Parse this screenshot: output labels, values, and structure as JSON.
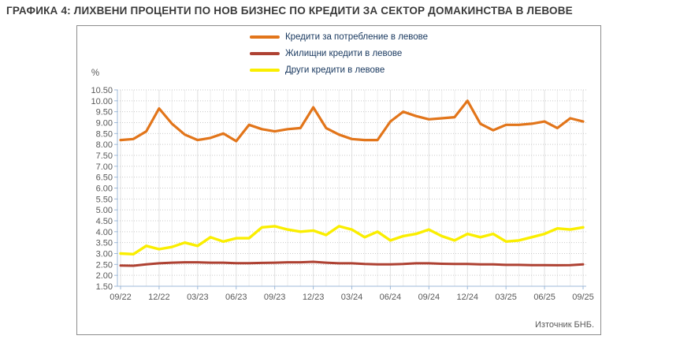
{
  "page_title": "ГРАФИКА 4: ЛИХВЕНИ ПРОЦЕНТИ ПО НОВ БИЗНЕС ПО КРЕДИТИ ЗА СЕКТОР ДОМАКИНСТВА В ЛЕВОВЕ",
  "source_note": "Източник БНБ.",
  "colors": {
    "consumer_line": "#e2751a",
    "housing_line": "#ae4132",
    "other_line": "#faee00",
    "axis": "#9db9d9",
    "grid_h": "#c9c9c9",
    "grid_v_month": "#ededed",
    "grid_v_quarter": "#e0e0e0",
    "tick_text": "#595959"
  },
  "chart_data": {
    "type": "line",
    "title": "ГРАФИКА 4: ЛИХВЕНИ ПРОЦЕНТИ ПО НОВ БИЗНЕС ПО КРЕДИТИ ЗА СЕКТОР ДОМАКИНСТВА В ЛЕВОВЕ",
    "unit_label": "%",
    "xlabel": "",
    "ylabel": "%",
    "ylim": [
      1.5,
      10.5
    ],
    "ytick_step": 0.5,
    "grid": true,
    "legend_position": "top-center",
    "x": [
      "09/22",
      "10/22",
      "11/22",
      "12/22",
      "01/23",
      "02/23",
      "03/23",
      "04/23",
      "05/23",
      "06/23",
      "07/23",
      "08/23",
      "09/23",
      "10/23",
      "11/23",
      "12/23",
      "01/24",
      "02/24",
      "03/24",
      "04/24",
      "05/24",
      "06/24",
      "07/24",
      "08/24",
      "09/24",
      "10/24",
      "11/24",
      "12/24",
      "01/25",
      "02/25",
      "03/25",
      "04/25",
      "05/25",
      "06/25",
      "07/25",
      "08/25",
      "09/25"
    ],
    "x_tick_labels": [
      "09/22",
      "12/22",
      "03/23",
      "06/23",
      "09/23",
      "12/23",
      "03/24",
      "06/24",
      "09/24",
      "12/24",
      "03/25",
      "06/25",
      "09/25"
    ],
    "x_tick_every": 3,
    "series": [
      {
        "name": "Кредити за потребление в левове",
        "color": "#e2751a",
        "values": [
          8.2,
          8.25,
          8.6,
          9.65,
          8.95,
          8.45,
          8.2,
          8.3,
          8.5,
          8.15,
          8.9,
          8.7,
          8.6,
          8.7,
          8.75,
          9.7,
          8.75,
          8.45,
          8.25,
          8.2,
          8.2,
          9.05,
          9.5,
          9.3,
          9.15,
          9.2,
          9.25,
          10.0,
          8.95,
          8.65,
          8.9,
          8.9,
          8.95,
          9.05,
          8.75,
          9.2,
          9.05
        ]
      },
      {
        "name": "Жилищни кредити в левове",
        "color": "#ae4132",
        "values": [
          2.45,
          2.44,
          2.5,
          2.55,
          2.58,
          2.6,
          2.6,
          2.58,
          2.58,
          2.56,
          2.56,
          2.57,
          2.58,
          2.6,
          2.6,
          2.62,
          2.58,
          2.55,
          2.55,
          2.52,
          2.5,
          2.5,
          2.52,
          2.55,
          2.55,
          2.53,
          2.52,
          2.52,
          2.5,
          2.5,
          2.48,
          2.48,
          2.47,
          2.47,
          2.46,
          2.47,
          2.5
        ]
      },
      {
        "name": "Други кредити в левове",
        "color": "#faee00",
        "values": [
          3.0,
          2.97,
          3.35,
          3.2,
          3.3,
          3.5,
          3.35,
          3.75,
          3.55,
          3.7,
          3.7,
          4.2,
          4.25,
          4.1,
          4.0,
          4.05,
          3.85,
          4.25,
          4.1,
          3.75,
          4.0,
          3.6,
          3.8,
          3.9,
          4.1,
          3.8,
          3.6,
          3.9,
          3.75,
          3.9,
          3.55,
          3.6,
          3.75,
          3.9,
          4.15,
          4.1,
          4.2
        ]
      }
    ]
  }
}
